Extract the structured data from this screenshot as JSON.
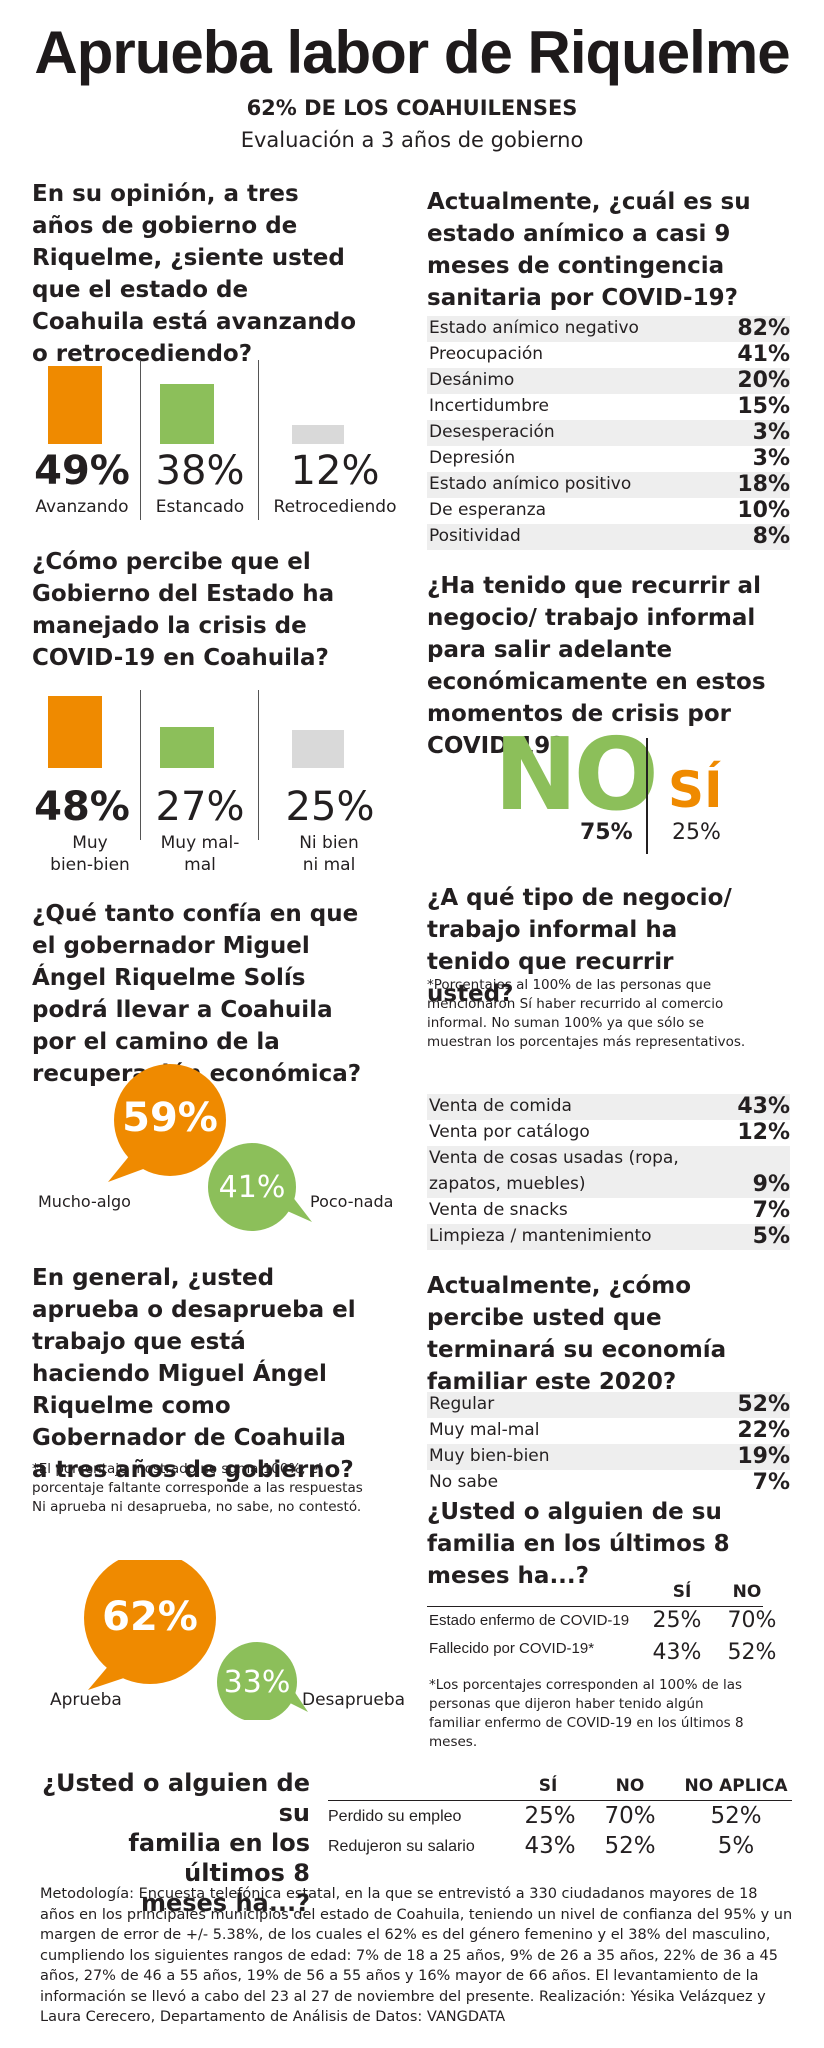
{
  "title": "Aprueba labor de Riquelme",
  "subtitle": "62% DE LOS COAHUILENSES",
  "subtitle2": "Evaluación a 3 años de gobierno",
  "colors": {
    "orange": "#ef8a00",
    "green": "#8cbf5a",
    "gray": "#d9d9d9"
  },
  "q1": {
    "question": "En su opinión, a tres años de gobierno de Riquelme, ¿siente usted que el estado de Coahuila está avanzando o retrocediendo?",
    "chart_data": {
      "type": "bar",
      "categories": [
        "Avanzando",
        "Estancado",
        "Retrocediendo"
      ],
      "values": [
        49,
        38,
        12
      ],
      "labels": [
        "49%",
        "38%",
        "12%"
      ]
    }
  },
  "q2": {
    "question": "¿Cómo percibe que el Gobierno del Estado ha manejado la crisis de COVID-19 en Coahuila?",
    "chart_data": {
      "type": "bar",
      "categories": [
        "Muy bien-bien",
        "Muy mal-mal",
        "Ni bien ni mal"
      ],
      "values": [
        48,
        27,
        25
      ],
      "labels": [
        "48%",
        "27%",
        "25%"
      ]
    }
  },
  "q3": {
    "question": "¿Qué tanto confía en que el gobernador Miguel Ángel Riquelme Solís podrá llevar a Coahuila por el camino de la recuperación económica?",
    "chart_data": {
      "type": "pie",
      "categories": [
        "Mucho-algo",
        "Poco-nada"
      ],
      "values": [
        59,
        41
      ],
      "labels": [
        "59%",
        "41%"
      ]
    }
  },
  "q4": {
    "question": "En general, ¿usted aprueba o desaprueba el trabajo que está haciendo Miguel Ángel Riquelme como Gobernador de Coahuila a tres años de gobierno?",
    "note": "*El porcentaje mostrado no suma 100%, el porcentaje faltante corresponde a las respuestas Ni aprueba ni desaprueba, no sabe, no contestó.",
    "chart_data": {
      "type": "pie",
      "categories": [
        "Aprueba",
        "Desaprueba"
      ],
      "values": [
        62,
        33
      ],
      "labels": [
        "62%",
        "33%"
      ]
    }
  },
  "q5": {
    "question": "Actualmente, ¿cuál es su estado anímico a casi 9 meses de contingencia sanitaria por COVID-19?",
    "chart_data": {
      "type": "table",
      "rows": [
        {
          "label": "Estado anímico negativo",
          "value": 82,
          "text": "82%"
        },
        {
          "label": "Preocupación",
          "value": 41,
          "text": "41%"
        },
        {
          "label": "Desánimo",
          "value": 20,
          "text": "20%"
        },
        {
          "label": "Incertidumbre",
          "value": 15,
          "text": "15%"
        },
        {
          "label": "Desesperación",
          "value": 3,
          "text": "3%"
        },
        {
          "label": "Depresión",
          "value": 3,
          "text": "3%"
        },
        {
          "label": "Estado anímico positivo",
          "value": 18,
          "text": "18%"
        },
        {
          "label": "De esperanza",
          "value": 10,
          "text": "10%"
        },
        {
          "label": "Positividad",
          "value": 8,
          "text": "8%"
        }
      ]
    }
  },
  "q6": {
    "question": "¿Ha tenido que recurrir al negocio/ trabajo informal para salir adelante económicamente en estos momentos de crisis por COVID-19?",
    "chart_data": {
      "type": "bar",
      "categories": [
        "NO",
        "SÍ"
      ],
      "values": [
        75,
        25
      ],
      "labels": [
        "75%",
        "25%"
      ]
    }
  },
  "q7": {
    "question": "¿A qué tipo de negocio/ trabajo informal ha tenido que recurrir usted?",
    "note": "*Porcentajes al 100% de las personas que mencionaron Sí haber recurrido al comercio informal. No suman 100% ya que sólo se muestran los porcentajes más representativos.",
    "chart_data": {
      "type": "table",
      "rows": [
        {
          "label": "Venta de comida",
          "value": 43,
          "text": "43%"
        },
        {
          "label": "Venta por catálogo",
          "value": 12,
          "text": "12%"
        },
        {
          "label": "Venta de cosas usadas (ropa, zapatos, muebles)",
          "label1": "Venta de cosas usadas (ropa,",
          "label2": "zapatos, muebles)",
          "value": 9,
          "text": "9%"
        },
        {
          "label": "Venta de snacks",
          "value": 7,
          "text": "7%"
        },
        {
          "label": "Limpieza / mantenimiento",
          "value": 5,
          "text": "5%"
        }
      ]
    }
  },
  "q8": {
    "question": "Actualmente, ¿cómo percibe usted que terminará su economía familiar este 2020?",
    "chart_data": {
      "type": "table",
      "rows": [
        {
          "label": "Regular",
          "value": 52,
          "text": "52%"
        },
        {
          "label": "Muy mal-mal",
          "value": 22,
          "text": "22%"
        },
        {
          "label": "Muy bien-bien",
          "value": 19,
          "text": "19%"
        },
        {
          "label": "No sabe",
          "value": 7,
          "text": "7%"
        }
      ]
    }
  },
  "q9": {
    "question": "¿Usted o alguien de su familia en los últimos 8 meses ha...?",
    "note": "*Los porcentajes corresponden al 100% de las personas que dijeron haber tenido algún familiar enfermo de COVID-19 en los últimos 8 meses.",
    "chart_data": {
      "type": "table",
      "columns": [
        "SÍ",
        "NO"
      ],
      "rows": [
        {
          "label": "Estado enfermo de COVID-19",
          "values": [
            "25%",
            "70%"
          ]
        },
        {
          "label": "Fallecido por COVID-19*",
          "values": [
            "43%",
            "52%"
          ]
        }
      ]
    }
  },
  "q10": {
    "question": "¿Usted o alguien de su familia en los últimos 8 meses ha...?",
    "q_line1": "¿Usted o alguien de su",
    "q_line2": "familia en los últimos 8",
    "q_line3": "meses ha...?",
    "chart_data": {
      "type": "table",
      "columns": [
        "SÍ",
        "NO",
        "NO APLICA"
      ],
      "rows": [
        {
          "label": "Perdido su empleo",
          "values": [
            "25%",
            "70%",
            "52%"
          ]
        },
        {
          "label": "Redujeron su salario",
          "values": [
            "43%",
            "52%",
            "5%"
          ]
        }
      ]
    }
  },
  "methodology": "Metodología: Encuesta telefónica estatal, en la que se entrevistó a 330 ciudadanos mayores de 18 años en los principales municipios del estado de Coahuila, teniendo un nivel de confianza del 95% y un margen de error de +/- 5.38%, de los cuales el 62% es del género femenino y el 38% del masculino, cumpliendo los siguientes rangos de edad: 7% de 18 a 25 años, 9% de 26 a 35 años, 22% de 36 a 45 años, 27% de 46 a 55 años, 19% de 56 a 55 años y 16% mayor de 66 años. El levantamiento de la información se llevó a cabo del 23 al 27 de noviembre del presente. Realización: Yésika Velázquez y Laura Cerecero, Departamento de Análisis de Datos: VANGDATA"
}
